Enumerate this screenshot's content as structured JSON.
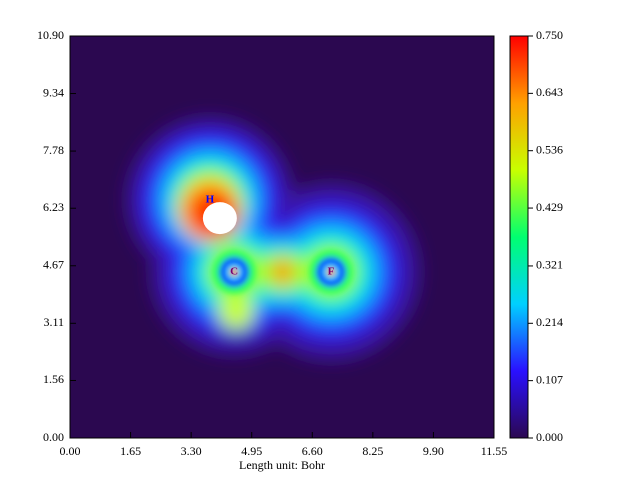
{
  "chart_data": {
    "type": "heatmap",
    "x_label": "Length unit: Bohr",
    "xlim": [
      0,
      11.55
    ],
    "xticks": [
      {
        "value": 0,
        "label": "0.00"
      },
      {
        "value": 1.65,
        "label": "1.65"
      },
      {
        "value": 3.3,
        "label": "3.30"
      },
      {
        "value": 4.95,
        "label": "4.95"
      },
      {
        "value": 6.6,
        "label": "6.60"
      },
      {
        "value": 8.25,
        "label": "8.25"
      },
      {
        "value": 9.9,
        "label": "9.90"
      },
      {
        "value": 11.55,
        "label": "11.55"
      }
    ],
    "ylim": [
      0,
      10.9
    ],
    "yticks": [
      {
        "value": 0,
        "label": "0.00"
      },
      {
        "value": 1.56,
        "label": "1.56"
      },
      {
        "value": 3.11,
        "label": "3.11"
      },
      {
        "value": 4.67,
        "label": "4.67"
      },
      {
        "value": 6.23,
        "label": "6.23"
      },
      {
        "value": 7.78,
        "label": "7.78"
      },
      {
        "value": 9.34,
        "label": "9.34"
      },
      {
        "value": 10.9,
        "label": "10.90"
      }
    ],
    "zlim": [
      0,
      0.75
    ],
    "zticks": [
      {
        "value": 0,
        "label": "0.000"
      },
      {
        "value": 0.107,
        "label": "0.107"
      },
      {
        "value": 0.214,
        "label": "0.214"
      },
      {
        "value": 0.321,
        "label": "0.321"
      },
      {
        "value": 0.429,
        "label": "0.429"
      },
      {
        "value": 0.536,
        "label": "0.536"
      },
      {
        "value": 0.643,
        "label": "0.643"
      },
      {
        "value": 0.75,
        "label": "0.750"
      }
    ],
    "colorscale": [
      "#2b0850",
      "#2a10ff",
      "#00d0ff",
      "#00ff70",
      "#c8ff00",
      "#ffa000",
      "#ff0000"
    ],
    "annotations": [
      {
        "text": "H",
        "x": 3.81,
        "y": 6.45
      },
      {
        "text": "C",
        "x": 4.47,
        "y": 4.5
      },
      {
        "text": "F",
        "x": 7.11,
        "y": 4.5
      }
    ]
  }
}
